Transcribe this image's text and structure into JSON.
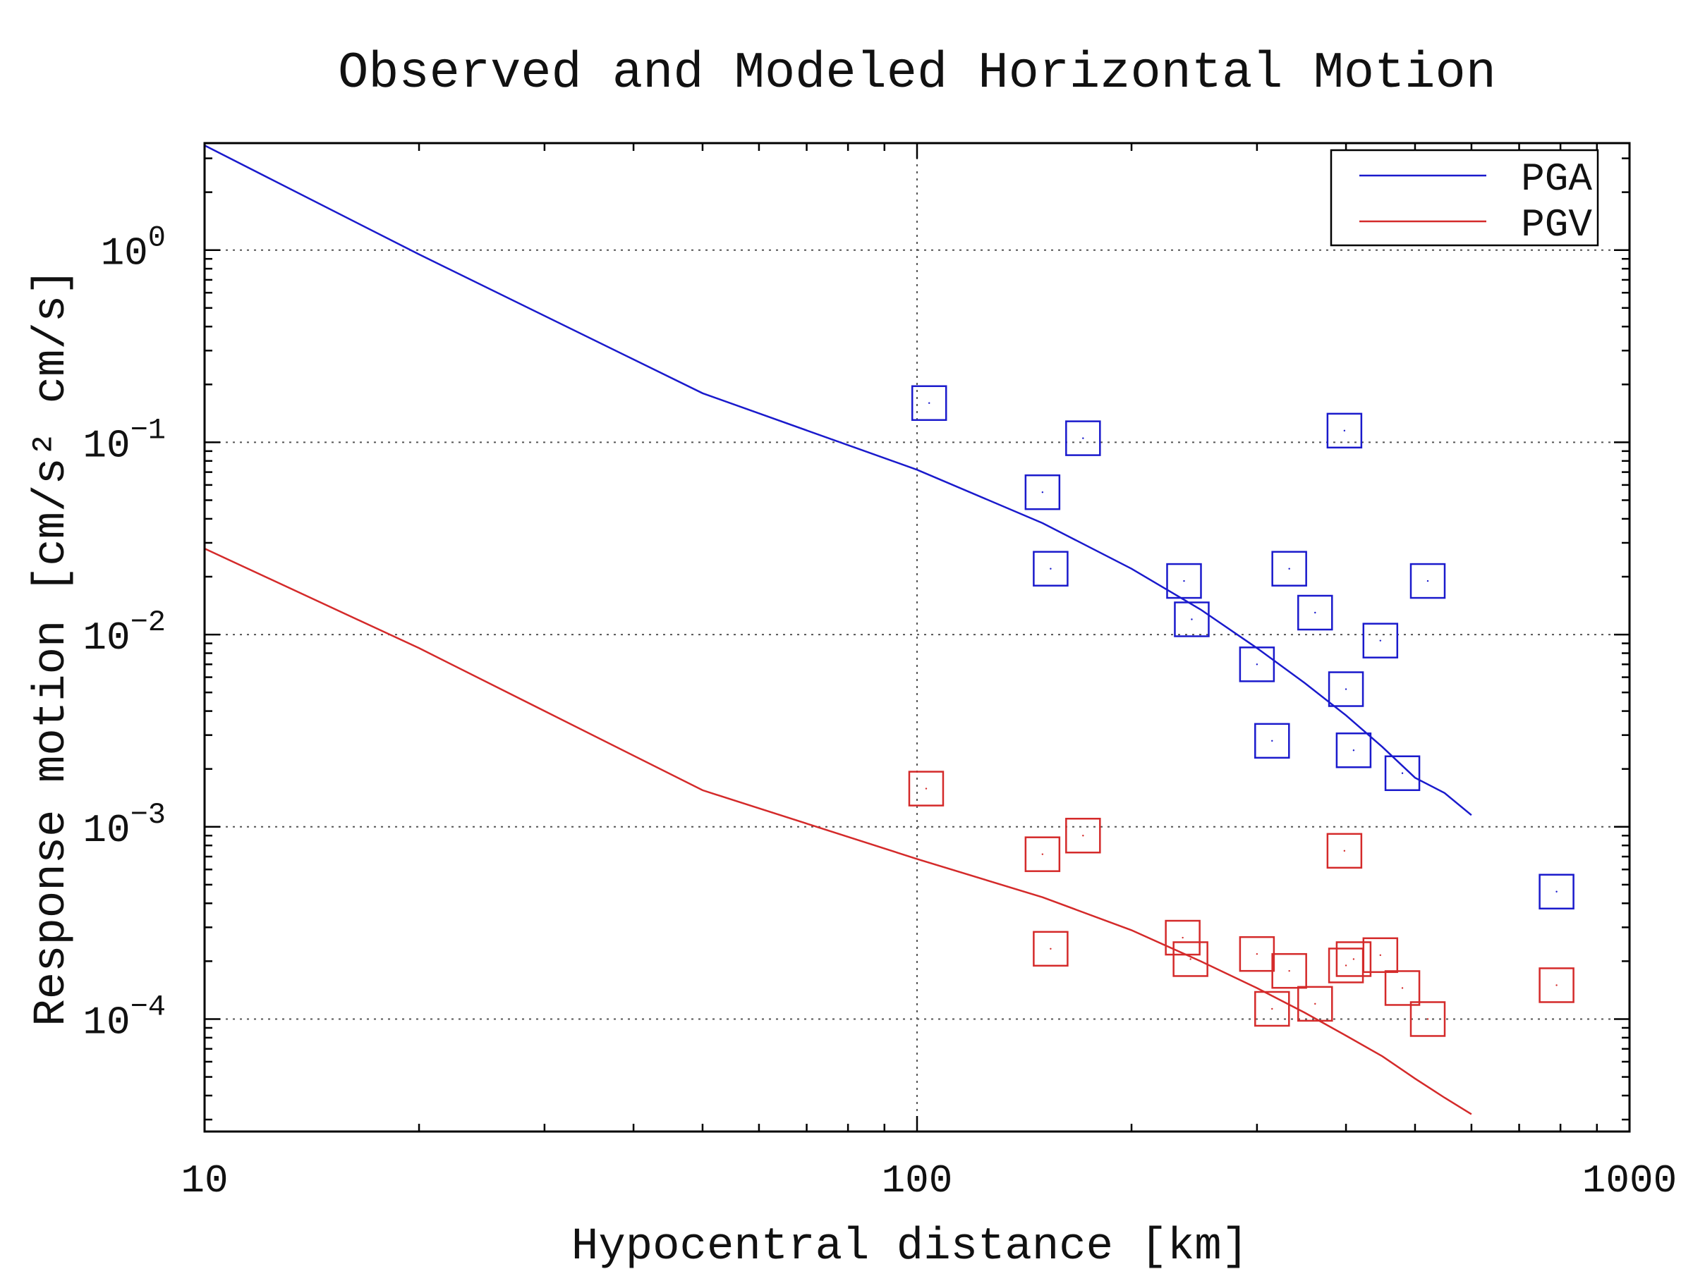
{
  "chart_data": {
    "type": "scatter",
    "title": "Observed and Modeled Horizontal Motion",
    "xlabel": "Hypocentral distance [km]",
    "ylabel": "Response motion [cm/s² cm/s]",
    "xscale": "log",
    "yscale": "log",
    "xlim": [
      10,
      1000
    ],
    "ylim": [
      2.6e-05,
      3.6
    ],
    "x_ticks": [
      {
        "value": 10,
        "label": "10"
      },
      {
        "value": 100,
        "label": "100"
      },
      {
        "value": 1000,
        "label": "1000"
      }
    ],
    "y_ticks": [
      {
        "value": 1,
        "base": "10",
        "exp": "0"
      },
      {
        "value": 0.1,
        "base": "10",
        "exp": "−1"
      },
      {
        "value": 0.01,
        "base": "10",
        "exp": "−2"
      },
      {
        "value": 0.001,
        "base": "10",
        "exp": "−3"
      },
      {
        "value": 0.0001,
        "base": "10",
        "exp": "−4"
      }
    ],
    "grid": true,
    "legend_position": "top-right",
    "series": [
      {
        "name": "PGA",
        "color": "#1a1acc",
        "model_line": {
          "x": [
            10,
            20,
            50,
            100,
            150,
            200,
            250,
            300,
            350,
            400,
            450,
            500,
            550,
            600
          ],
          "y": [
            3.5,
            0.95,
            0.18,
            0.072,
            0.038,
            0.022,
            0.0135,
            0.0085,
            0.0056,
            0.0038,
            0.0026,
            0.0018,
            0.0015,
            0.00115
          ]
        },
        "observed": {
          "x": [
            104,
            171,
            150,
            154,
            237,
            243,
            300,
            315,
            333,
            362,
            398,
            400,
            410,
            447,
            480,
            521,
            790
          ],
          "y": [
            0.16,
            0.105,
            0.055,
            0.022,
            0.019,
            0.012,
            0.007,
            0.0028,
            0.022,
            0.013,
            0.115,
            0.0052,
            0.0025,
            0.0093,
            0.0019,
            0.019,
            0.00046
          ]
        }
      },
      {
        "name": "PGV",
        "color": "#d42a2a",
        "model_line": {
          "x": [
            10,
            20,
            50,
            100,
            150,
            200,
            250,
            300,
            350,
            400,
            450,
            500,
            550,
            600
          ],
          "y": [
            0.028,
            0.0085,
            0.00155,
            0.00068,
            0.00043,
            0.00029,
            0.0002,
            0.000145,
            0.000108,
            8.2e-05,
            6.4e-05,
            4.9e-05,
            3.9e-05,
            3.2e-05
          ]
        },
        "observed": {
          "x": [
            103,
            150,
            171,
            154,
            236,
            242,
            300,
            315,
            333,
            362,
            398,
            400,
            410,
            447,
            480,
            521,
            790
          ],
          "y": [
            0.00158,
            0.00072,
            0.0009,
            0.000232,
            0.000265,
            0.000205,
            0.000218,
            0.000113,
            0.000178,
            0.00012,
            0.00075,
            0.00019,
            0.000205,
            0.000215,
            0.000145,
            0.0001,
            0.00015
          ]
        }
      }
    ]
  }
}
